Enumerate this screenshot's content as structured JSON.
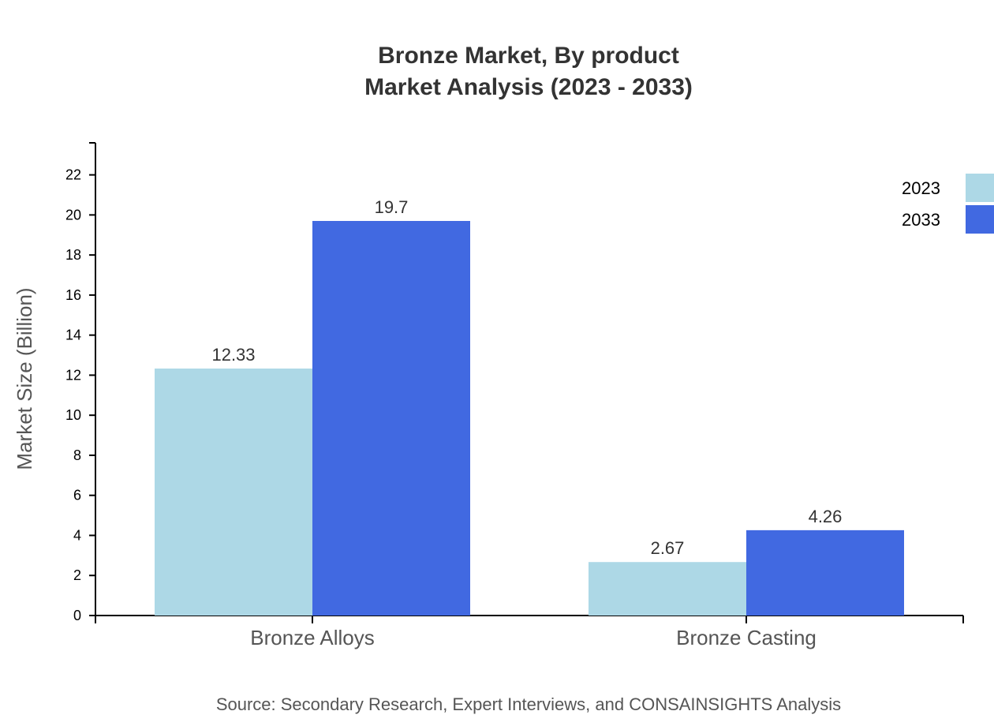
{
  "chart_data": {
    "type": "bar",
    "title": [
      "Bronze Market, By product",
      "Market Analysis (2023 - 2033)"
    ],
    "xlabel": "",
    "ylabel": "Market Size (Billion)",
    "categories": [
      "Bronze Alloys",
      "Bronze Casting"
    ],
    "series": [
      {
        "name": "2023",
        "values": [
          12.33,
          2.67
        ],
        "labels": [
          "12.33",
          "2.67"
        ],
        "color": "#ADD8E6"
      },
      {
        "name": "2033",
        "values": [
          19.7,
          4.26
        ],
        "labels": [
          "19.7",
          "4.26"
        ],
        "color": "#4169E1"
      }
    ],
    "ylim": [
      0,
      23.6
    ],
    "yticks": [
      0,
      2,
      4,
      6,
      8,
      10,
      12,
      14,
      16,
      18,
      20,
      22
    ],
    "grid": false,
    "legend_position": "top-right",
    "source": "Source: Secondary Research, Expert Interviews, and CONSAINSIGHTS Analysis"
  }
}
